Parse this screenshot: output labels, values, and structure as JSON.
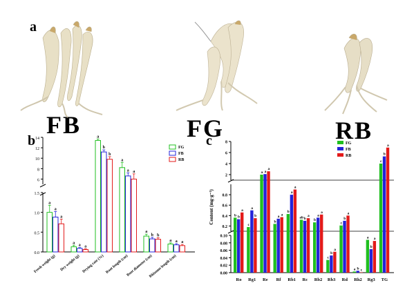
{
  "panels": {
    "a": "a",
    "b": "b",
    "c": "c"
  },
  "photo_labels": [
    "FB",
    "FG",
    "RB"
  ],
  "colors": {
    "FG": "#1fbf1f",
    "FB": "#2323d9",
    "RB": "#e31a1a"
  },
  "chart_data": [
    {
      "type": "bar",
      "panel": "b",
      "legend": [
        "FG",
        "FB",
        "RB"
      ],
      "legend_position": "top-right",
      "categories": [
        "Fresh weight (g)",
        "Dry weight (g)",
        "Drying rate (%)",
        "Root length (cm)",
        "Root diameter (cm)",
        "Rhizome length (cm)"
      ],
      "series": [
        {
          "name": "FG",
          "values": [
            1.0,
            0.13,
            13.4,
            8.2,
            0.4,
            0.2
          ],
          "errors": [
            0.18,
            0.04,
            0.3,
            1.0,
            0.05,
            0.03
          ],
          "letters": [
            "a",
            "a",
            "a",
            "a",
            "a",
            "a"
          ]
        },
        {
          "name": "FB",
          "values": [
            0.88,
            0.09,
            11.2,
            6.6,
            0.33,
            0.18
          ],
          "errors": [
            0.14,
            0.02,
            0.4,
            0.6,
            0.04,
            0.03
          ],
          "letters": [
            "a",
            "a",
            "b",
            "a",
            "b",
            "a"
          ]
        },
        {
          "name": "RB",
          "values": [
            0.71,
            0.06,
            9.8,
            6.0,
            0.32,
            0.16
          ],
          "errors": [
            0.12,
            0.02,
            0.5,
            1.0,
            0.04,
            0.03
          ],
          "letters": [
            "a",
            "a",
            "b",
            "a",
            "b",
            "a"
          ]
        }
      ],
      "y_axis_broken": true,
      "lower_segment": {
        "ylim": [
          0,
          1.5
        ],
        "ticks": [
          "0.0",
          "0.5",
          "1.0",
          "1.5"
        ]
      },
      "upper_segment": {
        "ylim": [
          5,
          14
        ],
        "ticks": [
          "6",
          "8",
          "10",
          "12",
          "14"
        ]
      },
      "grid": false
    },
    {
      "type": "bar",
      "panel": "c",
      "ylabel": "Content (mg·g⁻¹)",
      "legend": [
        "FG",
        "FB",
        "RB"
      ],
      "legend_position": "top-right",
      "categories": [
        "Ro",
        "Rg1",
        "Re",
        "Rf",
        "Rb1",
        "Rc",
        "Rb2",
        "Rb3",
        "Rd",
        "Rh2",
        "Rg3",
        "TG"
      ],
      "series": [
        {
          "name": "FG",
          "values": [
            0.36,
            0.18,
            2.0,
            0.24,
            0.43,
            0.32,
            0.27,
            0.034,
            0.21,
            0.003,
            0.088,
            4.0
          ],
          "letters": [
            "b",
            "c",
            "a",
            "b",
            "b",
            "ab",
            "b",
            "c",
            "c",
            "a",
            "a",
            "c"
          ]
        },
        {
          "name": "FB",
          "values": [
            0.33,
            0.5,
            2.1,
            0.34,
            0.8,
            0.3,
            0.36,
            0.046,
            0.3,
            0.005,
            0.063,
            5.3
          ],
          "letters": [
            "b",
            "a",
            "a",
            "a",
            "a",
            "b",
            "a",
            "b",
            "b",
            "b",
            "b",
            "b"
          ]
        },
        {
          "name": "RB",
          "values": [
            0.46,
            0.35,
            2.6,
            0.37,
            0.9,
            0.35,
            0.42,
            0.056,
            0.4,
            0.001,
            0.085,
            6.9
          ],
          "letters": [
            "a",
            "b",
            "a",
            "a",
            "a",
            "a",
            "a",
            "a",
            "a",
            "c",
            "a",
            "a"
          ]
        }
      ],
      "y_axis_broken": true,
      "segments": [
        {
          "ylim": [
            0,
            0.1
          ],
          "ticks": [
            "0.00",
            "0.02",
            "0.04",
            "0.06",
            "0.08",
            "0.10"
          ]
        },
        {
          "ylim": [
            0.1,
            1.0
          ],
          "ticks": [
            "0.2",
            "0.4",
            "0.6",
            "0.8"
          ]
        },
        {
          "ylim": [
            1.0,
            8.0
          ],
          "ticks": [
            "2",
            "4",
            "6",
            "8"
          ]
        }
      ],
      "grid": false
    }
  ]
}
